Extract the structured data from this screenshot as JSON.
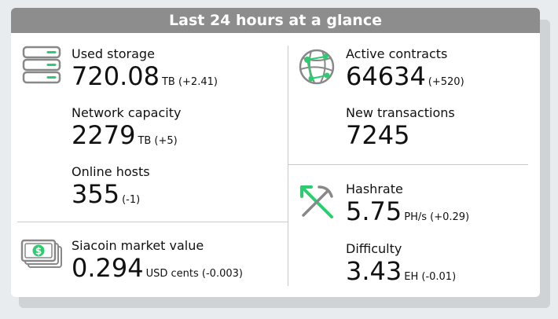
{
  "header": {
    "title": "Last 24 hours at a glance"
  },
  "left": {
    "storage": {
      "icon": "storage-icon",
      "used": {
        "label": "Used storage",
        "value": "720.08",
        "unit": "TB (+2.41)"
      },
      "capacity": {
        "label": "Network capacity",
        "value": "2279",
        "unit": "TB (+5)"
      },
      "hosts": {
        "label": "Online hosts",
        "value": "355",
        "unit": "(-1)"
      }
    },
    "market": {
      "icon": "money-icon",
      "label": "Siacoin market value",
      "value": "0.294",
      "unit": "USD cents (-0.003)"
    }
  },
  "right": {
    "contracts": {
      "icon": "network-globe-icon",
      "active": {
        "label": "Active contracts",
        "value": "64634",
        "unit": "(+520)"
      },
      "transactions": {
        "label": "New transactions",
        "value": "7245",
        "unit": ""
      }
    },
    "mining": {
      "icon": "pickaxe-icon",
      "hashrate": {
        "label": "Hashrate",
        "value": "5.75",
        "unit": "PH/s (+0.29)"
      },
      "difficulty": {
        "label": "Difficulty",
        "value": "3.43",
        "unit": "EH (-0.01)"
      }
    }
  },
  "colors": {
    "accent": "#2ecc71",
    "header_bg": "#8d8d8d",
    "icon_gray": "#888888"
  }
}
